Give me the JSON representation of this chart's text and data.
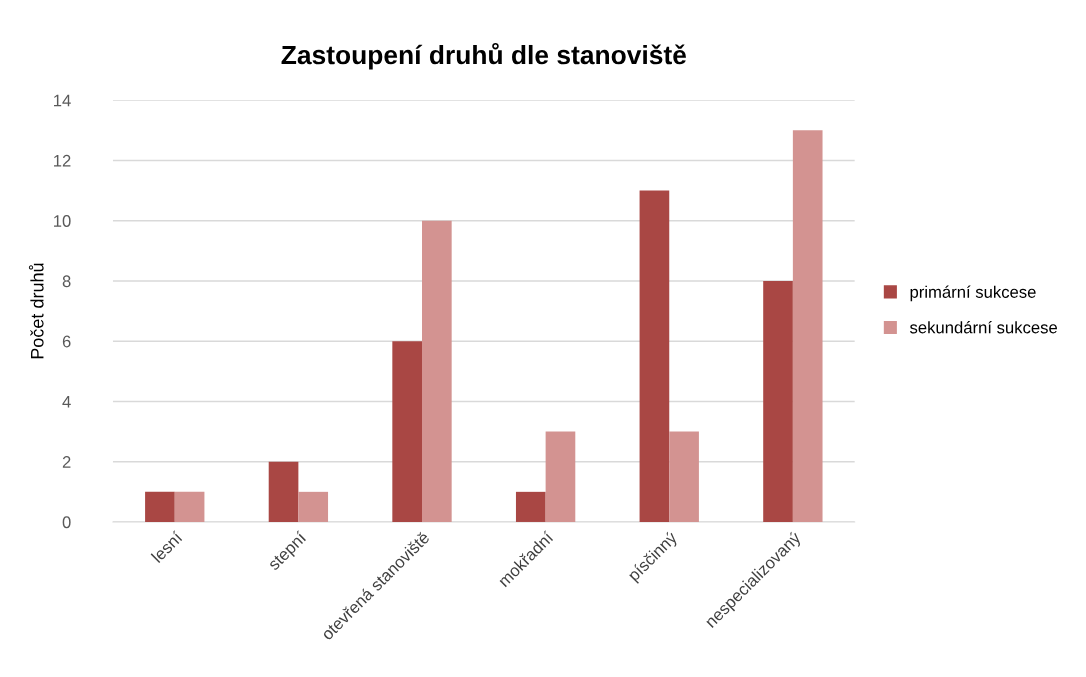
{
  "chart_data": {
    "type": "bar",
    "title": "Zastoupení druhů dle stanoviště",
    "ylabel": "Počet druhů",
    "categories": [
      "lesní",
      "stepní",
      "otevřená stanoviště",
      "mokřadní",
      "písčinný",
      "nespecializovaný"
    ],
    "series": [
      {
        "name": "primární sukcese",
        "color": "#a94744",
        "values": [
          1,
          2,
          6,
          1,
          11,
          8
        ]
      },
      {
        "name": "sekundární sukcese",
        "color": "#d39391",
        "values": [
          1,
          1,
          10,
          3,
          3,
          13
        ]
      }
    ],
    "ylim": [
      0,
      14
    ],
    "yticks": [
      0,
      2,
      4,
      6,
      8,
      10,
      12,
      14
    ],
    "grid": "y",
    "legend": "right"
  }
}
